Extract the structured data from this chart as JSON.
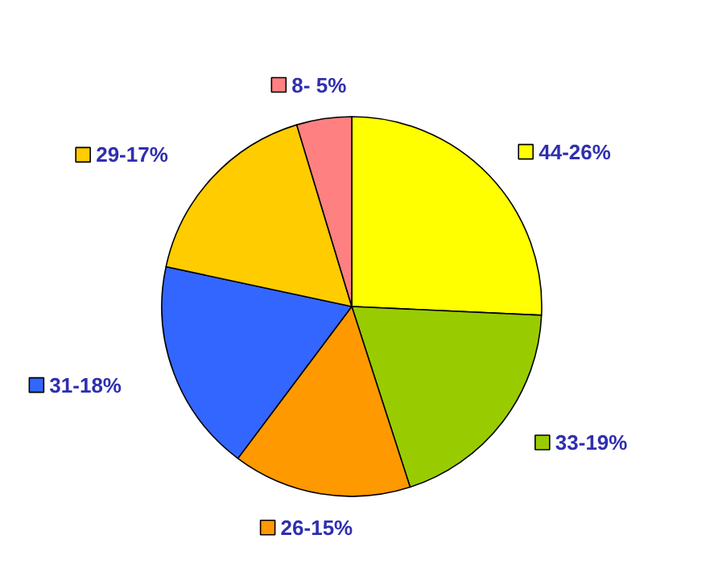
{
  "chart_data": {
    "type": "pie",
    "categories": [
      "44-26%",
      "33-19%",
      "26-15%",
      "31-18%",
      "29-17%",
      "8- 5%"
    ],
    "values": [
      44,
      33,
      26,
      31,
      29,
      8
    ],
    "colors": [
      "#ffff00",
      "#99cc00",
      "#ff9900",
      "#3366ff",
      "#ffcc00",
      "#ff8080"
    ],
    "legend": "center"
  }
}
